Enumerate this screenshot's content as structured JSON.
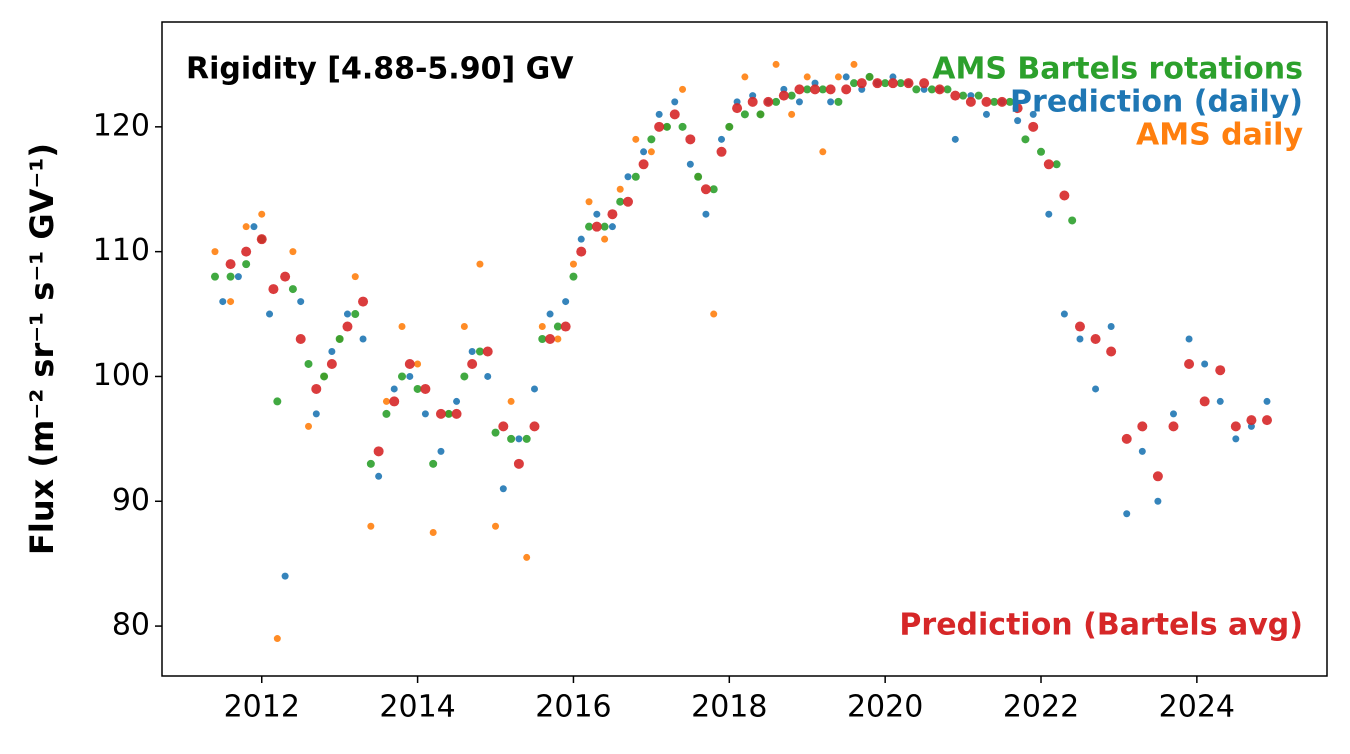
{
  "chart_data": {
    "type": "scatter",
    "annotation": "Rigidity [4.88-5.90] GV",
    "y_label": "Flux (m⁻² sr⁻¹ s⁻¹ GV⁻¹)",
    "xlim": [
      2010.72,
      2025.67
    ],
    "xticks": [
      2012,
      2014,
      2016,
      2018,
      2020,
      2022,
      2024
    ],
    "ylim": [
      76.0,
      128.4
    ],
    "yticks": [
      80,
      90,
      100,
      110,
      120
    ],
    "series": [
      {
        "name": "AMS Bartels rotations",
        "color": "#2ca02c",
        "x": [
          2011.4,
          2011.6,
          2011.8,
          2012.0,
          2012.2,
          2012.4,
          2012.6,
          2012.8,
          2013.0,
          2013.2,
          2013.4,
          2013.6,
          2013.8,
          2014.0,
          2014.2,
          2014.4,
          2014.6,
          2014.8,
          2015.0,
          2015.2,
          2015.4,
          2015.6,
          2015.8,
          2016.0,
          2016.2,
          2016.4,
          2016.6,
          2016.8,
          2017.0,
          2017.2,
          2017.4,
          2017.6,
          2017.8,
          2018.0,
          2018.2,
          2018.4,
          2018.6,
          2018.8,
          2019.0,
          2019.2,
          2019.4,
          2019.6,
          2019.8,
          2020.0,
          2020.2,
          2020.4,
          2020.6,
          2020.8,
          2021.0,
          2021.2,
          2021.4,
          2021.6,
          2021.8,
          2022.0,
          2022.2,
          2022.4
        ],
        "values": [
          108,
          108,
          109,
          111,
          98,
          107,
          101,
          100,
          103,
          105,
          93,
          97,
          100,
          99,
          93,
          97,
          100,
          102,
          95.5,
          95,
          95,
          103,
          104,
          108,
          112,
          112,
          114,
          116,
          119,
          120,
          120,
          116,
          115,
          120,
          121,
          121,
          122,
          122.5,
          123,
          123,
          122,
          123.5,
          124,
          123.5,
          123.5,
          123,
          123,
          123,
          122.5,
          122.5,
          122,
          122,
          119,
          118,
          117,
          112.5
        ]
      },
      {
        "name": "Prediction (daily)",
        "color": "#1f77b4",
        "x": [
          2011.5,
          2011.7,
          2011.9,
          2012.1,
          2012.3,
          2012.5,
          2012.7,
          2012.9,
          2013.1,
          2013.3,
          2013.5,
          2013.7,
          2013.9,
          2014.1,
          2014.3,
          2014.5,
          2014.7,
          2014.9,
          2015.1,
          2015.3,
          2015.5,
          2015.7,
          2015.9,
          2016.1,
          2016.3,
          2016.5,
          2016.7,
          2016.9,
          2017.1,
          2017.3,
          2017.5,
          2017.7,
          2017.9,
          2018.1,
          2018.3,
          2018.5,
          2018.7,
          2018.9,
          2019.1,
          2019.3,
          2019.5,
          2019.7,
          2019.9,
          2020.1,
          2020.3,
          2020.5,
          2020.7,
          2020.9,
          2021.1,
          2021.3,
          2021.5,
          2021.7,
          2021.9,
          2022.1,
          2022.3,
          2022.5,
          2022.7,
          2022.9,
          2023.1,
          2023.3,
          2023.5,
          2023.7,
          2023.9,
          2024.1,
          2024.3,
          2024.5,
          2024.7,
          2024.9
        ],
        "values": [
          106,
          108,
          112,
          105,
          84,
          106,
          97,
          102,
          105,
          103,
          92,
          99,
          100,
          97,
          94,
          98,
          102,
          100,
          91,
          95,
          99,
          105,
          106,
          111,
          113,
          112,
          116,
          118,
          121,
          122,
          117,
          113,
          119,
          122,
          122.5,
          122,
          123,
          122,
          123.5,
          122,
          124,
          123,
          123.5,
          124,
          123.5,
          123,
          123,
          119,
          122.5,
          121,
          122,
          120.5,
          121,
          113,
          105,
          103,
          99,
          104,
          89,
          94,
          90,
          97,
          103,
          101,
          98,
          95,
          96,
          98
        ]
      },
      {
        "name": "AMS daily",
        "color": "#ff7f0e",
        "x": [
          2011.4,
          2011.6,
          2011.8,
          2012.0,
          2012.2,
          2012.4,
          2012.6,
          2012.8,
          2013.0,
          2013.2,
          2013.4,
          2013.6,
          2013.8,
          2014.0,
          2014.2,
          2014.4,
          2014.6,
          2014.8,
          2015.0,
          2015.2,
          2015.4,
          2015.6,
          2015.8,
          2016.0,
          2016.2,
          2016.4,
          2016.6,
          2016.8,
          2017.0,
          2017.2,
          2017.4,
          2017.6,
          2017.8,
          2018.0,
          2018.2,
          2018.4,
          2018.6,
          2018.8,
          2019.0,
          2019.2,
          2019.4,
          2019.6,
          2019.8
        ],
        "values": [
          110,
          106,
          112,
          113,
          79,
          110,
          96,
          100,
          103,
          108,
          88,
          98,
          104,
          101,
          87.5,
          97,
          104,
          109,
          88,
          98,
          85.5,
          104,
          103,
          109,
          114,
          111,
          115,
          119,
          118,
          120,
          123,
          116,
          105,
          120,
          124,
          121,
          125,
          121,
          124,
          118,
          124,
          125,
          124
        ]
      },
      {
        "name": "Prediction (Bartels avg)",
        "color": "#d62728",
        "x": [
          2011.6,
          2011.8,
          2012.0,
          2012.15,
          2012.3,
          2012.5,
          2012.7,
          2012.9,
          2013.1,
          2013.3,
          2013.5,
          2013.7,
          2013.9,
          2014.1,
          2014.3,
          2014.5,
          2014.7,
          2014.9,
          2015.1,
          2015.3,
          2015.5,
          2015.7,
          2015.9,
          2016.1,
          2016.3,
          2016.5,
          2016.7,
          2016.9,
          2017.1,
          2017.3,
          2017.5,
          2017.7,
          2017.9,
          2018.1,
          2018.3,
          2018.5,
          2018.7,
          2018.9,
          2019.1,
          2019.3,
          2019.5,
          2019.7,
          2019.9,
          2020.1,
          2020.3,
          2020.5,
          2020.7,
          2020.9,
          2021.1,
          2021.3,
          2021.5,
          2021.7,
          2021.9,
          2022.1,
          2022.3,
          2022.5,
          2022.7,
          2022.9,
          2023.1,
          2023.3,
          2023.5,
          2023.7,
          2023.9,
          2024.1,
          2024.3,
          2024.5,
          2024.7,
          2024.9
        ],
        "values": [
          109,
          110,
          111,
          107,
          108,
          103,
          99,
          101,
          104,
          106,
          94,
          98,
          101,
          99,
          97,
          97,
          101,
          102,
          96,
          93,
          96,
          103,
          104,
          110,
          112,
          113,
          114,
          117,
          120,
          121,
          119,
          115,
          118,
          121.5,
          122,
          122,
          122.5,
          123,
          123,
          123,
          123,
          123.5,
          123.5,
          123.5,
          123.5,
          123.5,
          123,
          122.5,
          122,
          122,
          122,
          121.5,
          120,
          117,
          114.5,
          104,
          103,
          102,
          95,
          96,
          92,
          96,
          101,
          98,
          100.5,
          96,
          96.5,
          96.5
        ]
      }
    ]
  }
}
